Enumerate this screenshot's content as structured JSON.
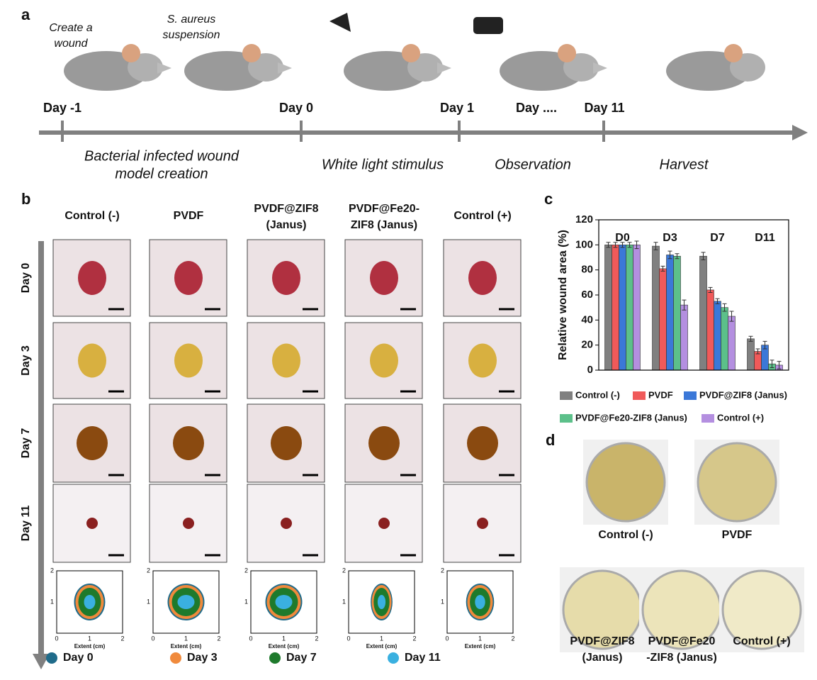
{
  "panel_a": {
    "label": "a",
    "annotations": [
      [
        "Create a",
        "wound"
      ],
      [
        "S. aureus",
        "suspension"
      ]
    ],
    "days": [
      "Day -1",
      "Day 0",
      "Day 1",
      "Day ....",
      "Day 11"
    ],
    "stages": [
      [
        "Bacterial infected wound",
        "model creation"
      ],
      [
        "White light stimulus"
      ],
      [
        "Observation"
      ],
      [
        "Harvest"
      ]
    ]
  },
  "panel_b": {
    "label": "b",
    "columns": [
      [
        "Control (-)"
      ],
      [
        "PVDF"
      ],
      [
        "PVDF@ZIF8",
        "(Janus)"
      ],
      [
        "PVDF@Fe20-",
        "ZIF8 (Janus)"
      ],
      [
        "Control (+)"
      ]
    ],
    "rows": [
      "Day 0",
      "Day 3",
      "Day 7",
      "Day 11"
    ],
    "trace_axis": {
      "xlabel": "Extent (cm)",
      "xlim": [
        0,
        2
      ],
      "ylim": [
        0,
        2
      ],
      "xticks": [
        0,
        1,
        2
      ],
      "yticks": [
        1,
        2
      ]
    },
    "legend": [
      {
        "name": "Day 0",
        "color": "#1f6b8a"
      },
      {
        "name": "Day 3",
        "color": "#f08a3c"
      },
      {
        "name": "Day 7",
        "color": "#1e7a2c"
      },
      {
        "name": "Day 11",
        "color": "#3ab0e0"
      }
    ]
  },
  "chart_data": {
    "type": "bar",
    "label": "c",
    "ylabel": "Relative wound area (%)",
    "categories": [
      "D0",
      "D3",
      "D7",
      "D11"
    ],
    "ylim": [
      0,
      120
    ],
    "yticks": [
      0,
      20,
      40,
      60,
      80,
      100,
      120
    ],
    "series": [
      {
        "name": "Control (-)",
        "color": "#808080",
        "values": [
          100,
          99,
          91,
          25
        ],
        "errors": [
          2,
          3,
          3,
          2
        ]
      },
      {
        "name": "PVDF",
        "color": "#f05a5a",
        "values": [
          100,
          81,
          64,
          15
        ],
        "errors": [
          2,
          2,
          2,
          2
        ]
      },
      {
        "name": "PVDF@ZIF8 (Janus)",
        "color": "#3b78d8",
        "values": [
          100,
          92,
          55,
          20
        ],
        "errors": [
          2,
          3,
          2,
          3
        ]
      },
      {
        "name": "PVDF@Fe20-ZIF8 (Janus)",
        "color": "#5cc08a",
        "values": [
          100,
          91,
          50,
          5
        ],
        "errors": [
          2,
          2,
          3,
          3
        ]
      },
      {
        "name": "Control (+)",
        "color": "#b48fe0",
        "values": [
          100,
          52,
          43,
          4
        ],
        "errors": [
          3,
          4,
          4,
          3
        ]
      }
    ]
  },
  "panel_d": {
    "label": "d",
    "plates": [
      [
        "Control (-)"
      ],
      [
        "PVDF"
      ],
      [
        "PVDF@ZIF8",
        "(Janus)"
      ],
      [
        "PVDF@Fe20",
        "-ZIF8 (Janus)"
      ],
      [
        "Control (+)"
      ]
    ]
  }
}
